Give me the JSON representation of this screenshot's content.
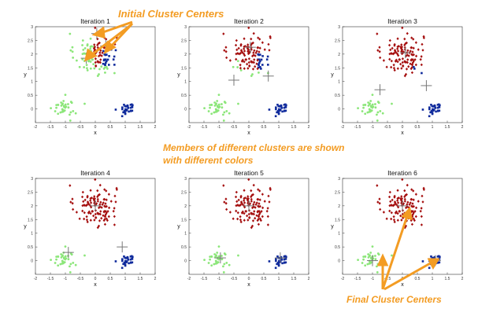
{
  "annotations": {
    "initial_centers": "Initial Cluster Centers",
    "members_line1": "Members of different clusters are shown",
    "members_line2": "with different colors",
    "final_centers": "Final Cluster Centers"
  },
  "colors": {
    "red": "#a50f0f",
    "blue": "#0f2a9c",
    "green": "#8ce67a",
    "annotation": "#f39c23",
    "center": "#777777",
    "axis": "#333333"
  },
  "chart_data": [
    {
      "type": "scatter",
      "title": "Iteration 1",
      "xlabel": "x",
      "ylabel": "y",
      "xlim": [
        -2,
        2
      ],
      "ylim": [
        -0.5,
        3
      ],
      "xticks": [
        "-2",
        "-1.5",
        "-1",
        "-0.5",
        "0",
        "0.5",
        "1",
        "1.5",
        "2"
      ],
      "yticks": [
        "0",
        "0.5",
        "1",
        "1.5",
        "2",
        "2.5",
        "3"
      ],
      "centers": [
        [
          -0.3,
          1.85
        ],
        [
          0.05,
          2.75
        ],
        [
          0.35,
          2.3
        ]
      ],
      "assignment": "iter1"
    },
    {
      "type": "scatter",
      "title": "Iteration 2",
      "xlabel": "x",
      "ylabel": "y",
      "xlim": [
        -2,
        2
      ],
      "ylim": [
        -0.5,
        3
      ],
      "xticks": [
        "-2",
        "-1.5",
        "-1",
        "-0.5",
        "0",
        "0.5",
        "1",
        "1.5",
        "2"
      ],
      "yticks": [
        "0",
        "0.5",
        "1",
        "1.5",
        "2",
        "2.5",
        "3"
      ],
      "centers": [
        [
          -0.5,
          1.05
        ],
        [
          0.05,
          2.25
        ],
        [
          0.65,
          1.2
        ]
      ],
      "assignment": "iter2"
    },
    {
      "type": "scatter",
      "title": "Iteration 3",
      "xlabel": "x",
      "ylabel": "y",
      "xlim": [
        -2,
        2
      ],
      "ylim": [
        -0.5,
        3
      ],
      "xticks": [
        "-2",
        "-1.5",
        "-1",
        "-0.5",
        "0",
        "0.5",
        "1",
        "1.5",
        "2"
      ],
      "yticks": [
        "0",
        "0.5",
        "1",
        "1.5",
        "2",
        "2.5",
        "3"
      ],
      "centers": [
        [
          -0.75,
          0.7
        ],
        [
          0.1,
          2.05
        ],
        [
          0.8,
          0.85
        ]
      ],
      "assignment": "iter3"
    },
    {
      "type": "scatter",
      "title": "Iteration 4",
      "xlabel": "x",
      "ylabel": "y",
      "xlim": [
        -2,
        2
      ],
      "ylim": [
        -0.5,
        3
      ],
      "xticks": [
        "-2",
        "-1.5",
        "-1",
        "-0.5",
        "0",
        "0.5",
        "1",
        "1.5",
        "2"
      ],
      "yticks": [
        "0",
        "0.5",
        "1",
        "1.5",
        "2",
        "2.5",
        "3"
      ],
      "centers": [
        [
          -0.9,
          0.3
        ],
        [
          0.0,
          2.0
        ],
        [
          0.9,
          0.5
        ]
      ],
      "assignment": "final"
    },
    {
      "type": "scatter",
      "title": "Iteration 5",
      "xlabel": "x",
      "ylabel": "y",
      "xlim": [
        -2,
        2
      ],
      "ylim": [
        -0.5,
        3
      ],
      "xticks": [
        "-2",
        "-1.5",
        "-1",
        "-0.5",
        "0",
        "0.5",
        "1",
        "1.5",
        "2"
      ],
      "yticks": [
        "0",
        "0.5",
        "1",
        "1.5",
        "2",
        "2.5",
        "3"
      ],
      "centers": [
        [
          -0.95,
          0.1
        ],
        [
          0.0,
          2.0
        ],
        [
          1.05,
          0.1
        ]
      ],
      "assignment": "final"
    },
    {
      "type": "scatter",
      "title": "Iteration 6",
      "xlabel": "x",
      "ylabel": "y",
      "xlim": [
        -2,
        2
      ],
      "ylim": [
        -0.5,
        3
      ],
      "xticks": [
        "-2",
        "-1.5",
        "-1",
        "-0.5",
        "0",
        "0.5",
        "1",
        "1.5",
        "2"
      ],
      "yticks": [
        "0",
        "0.5",
        "1",
        "1.5",
        "2",
        "2.5",
        "3"
      ],
      "centers": [
        [
          -1.0,
          0.0
        ],
        [
          0.0,
          2.0
        ],
        [
          1.1,
          0.0
        ]
      ],
      "assignment": "final"
    }
  ]
}
